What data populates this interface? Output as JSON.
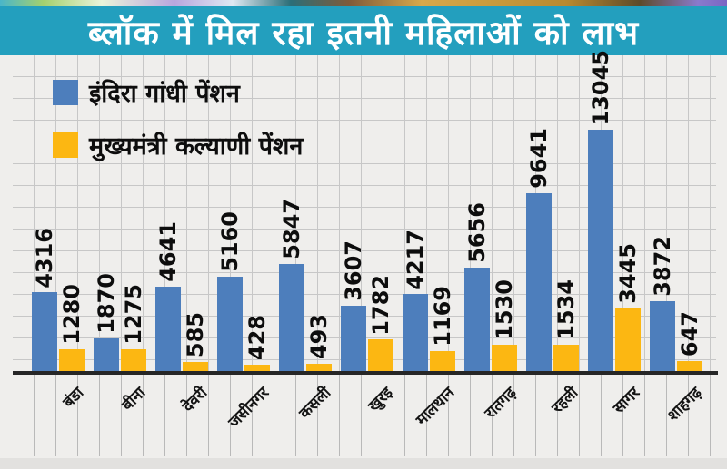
{
  "title": "ब्लॉक में मिल रहा इतनी महिलाओं को लाभ",
  "colors": {
    "title_band_bg": "#239fbe",
    "title_text": "#ffffff",
    "chart_bg": "#efeeec",
    "grid_line": "#c7c7c7",
    "axis_line": "#262626",
    "series_blue": "#4d7ebc",
    "series_orange": "#fcb712"
  },
  "legend": {
    "items": [
      {
        "label": "इंदिरा गांधी पेंशन",
        "color": "#4d7ebc"
      },
      {
        "label": "मुख्यमंत्री कल्याणी पेंशन",
        "color": "#fcb712"
      }
    ]
  },
  "chart_data": {
    "type": "bar",
    "title": "ब्लॉक में मिल रहा इतनी महिलाओं को लाभ",
    "categories": [
      "बंडा",
      "बीना",
      "देवरी",
      "जसीनगर",
      "कसली",
      "खुरइ",
      "मालथान",
      "रातगढ़",
      "रहली",
      "सागर",
      "शाहगढ़"
    ],
    "series": [
      {
        "name": "इंदिरा गांधी पेंशन",
        "color": "#4d7ebc",
        "values": [
          4316,
          1870,
          4641,
          5160,
          5847,
          3607,
          4217,
          5656,
          9641,
          13045,
          3872
        ]
      },
      {
        "name": "मुख्यमंत्री कल्याणी पेंशन",
        "color": "#fcb712",
        "values": [
          1280,
          1275,
          585,
          428,
          493,
          1782,
          1169,
          1530,
          1534,
          3445,
          647
        ]
      }
    ],
    "xlabel": "",
    "ylabel": "",
    "ylim": [
      0,
      13045
    ],
    "grid": "graph-paper",
    "legend_position": "top-left",
    "value_labels": "rotated-vertical",
    "category_labels": "rotated-45"
  }
}
